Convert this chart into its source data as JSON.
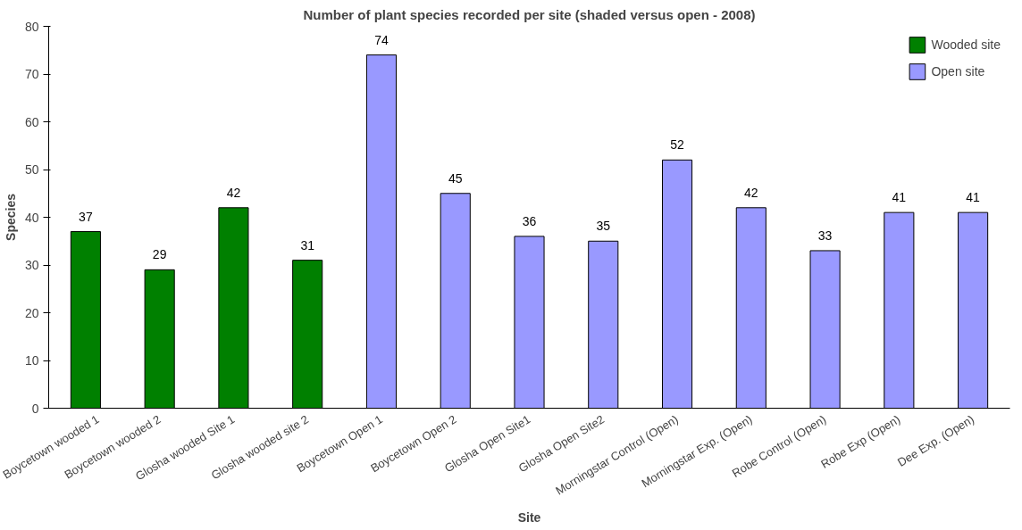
{
  "chart_data": {
    "type": "bar",
    "title": "Number of plant species recorded per site (shaded versus open - 2008)",
    "xlabel": "Site",
    "ylabel": "Species",
    "categories": [
      "Boycetown wooded 1",
      "Boycetown wooded 2",
      "Glosha wooded Site 1",
      "Glosha wooded site 2",
      "Boycetown Open 1",
      "Boycetown Open 2",
      "Glosha Open Site1",
      "Glosha Open Site2",
      "Morningstar Control (Open)",
      "Morningstar Exp. (Open)",
      "Robe Control (Open)",
      "Robe Exp (Open)",
      "Dee Exp. (Open)"
    ],
    "series": [
      {
        "name": "Wooded site",
        "color": "#008000",
        "values": [
          37,
          29,
          42,
          31,
          null,
          null,
          null,
          null,
          null,
          null,
          null,
          null,
          null
        ]
      },
      {
        "name": "Open site",
        "color": "#9999ff",
        "values": [
          null,
          null,
          null,
          null,
          74,
          45,
          36,
          35,
          52,
          42,
          33,
          41,
          41
        ]
      }
    ],
    "ylim": [
      0,
      80
    ],
    "yticks": [
      0,
      10,
      20,
      30,
      40,
      50,
      60,
      70,
      80
    ],
    "grid": false,
    "legend": "top right",
    "data_labels": true
  }
}
